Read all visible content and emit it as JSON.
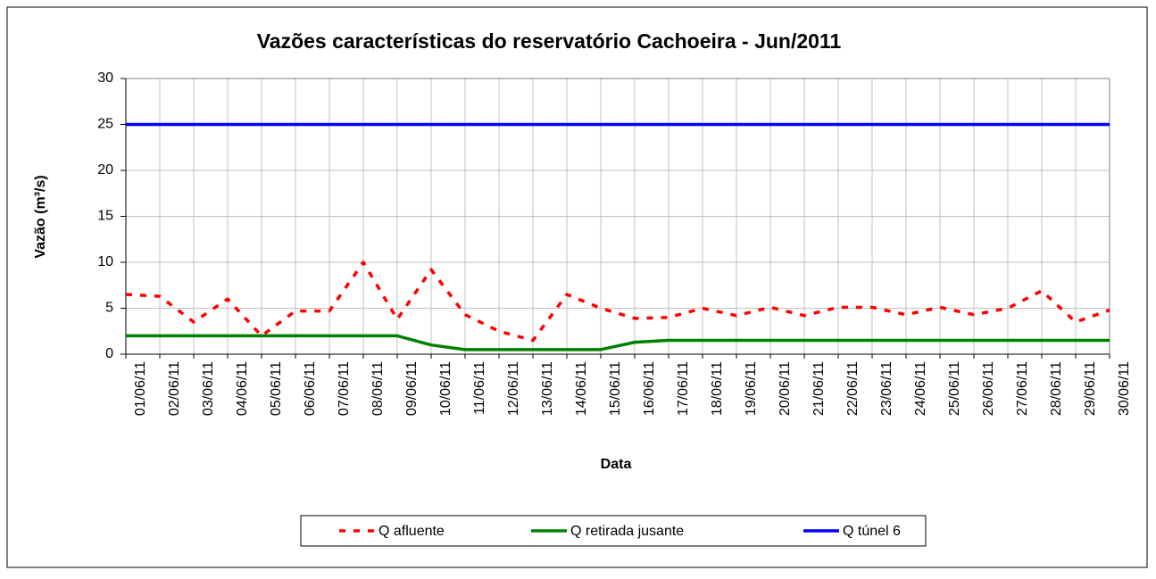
{
  "chart_data": {
    "type": "line",
    "title": "Vazões características do reservatório Cachoeira - Jun/2011",
    "x_label": "Data",
    "y_label": "Vazão (m³/s)",
    "categories": [
      "01/06/11",
      "02/06/11",
      "03/06/11",
      "04/06/11",
      "05/06/11",
      "06/06/11",
      "07/06/11",
      "08/06/11",
      "09/06/11",
      "10/06/11",
      "11/06/11",
      "12/06/11",
      "13/06/11",
      "14/06/11",
      "15/06/11",
      "16/06/11",
      "17/06/11",
      "18/06/11",
      "19/06/11",
      "20/06/11",
      "21/06/11",
      "22/06/11",
      "23/06/11",
      "24/06/11",
      "25/06/11",
      "26/06/11",
      "27/06/11",
      "28/06/11",
      "29/06/11",
      "30/06/11"
    ],
    "series": [
      {
        "name": "Q afluente",
        "color": "#ff0000",
        "dashed": true,
        "values": [
          6.5,
          6.3,
          3.5,
          6.0,
          2.0,
          4.7,
          4.7,
          10.0,
          3.8,
          9.2,
          4.3,
          2.5,
          1.5,
          6.5,
          5.0,
          3.9,
          4.0,
          5.0,
          4.2,
          5.1,
          4.2,
          5.1,
          5.1,
          4.3,
          5.1,
          4.3,
          5.0,
          6.9,
          3.5,
          4.8
        ]
      },
      {
        "name": "Q retirada jusante",
        "color": "#008000",
        "dashed": false,
        "values": [
          2,
          2,
          2,
          2,
          2,
          2,
          2,
          2,
          2,
          1.0,
          0.5,
          0.5,
          0.5,
          0.5,
          0.5,
          1.3,
          1.5,
          1.5,
          1.5,
          1.5,
          1.5,
          1.5,
          1.5,
          1.5,
          1.5,
          1.5,
          1.5,
          1.5,
          1.5,
          1.5
        ]
      },
      {
        "name": "Q túnel 6",
        "color": "#0000ff",
        "dashed": false,
        "values": [
          25,
          25,
          25,
          25,
          25,
          25,
          25,
          25,
          25,
          25,
          25,
          25,
          25,
          25,
          25,
          25,
          25,
          25,
          25,
          25,
          25,
          25,
          25,
          25,
          25,
          25,
          25,
          25,
          25,
          25
        ]
      }
    ],
    "ylim": [
      0,
      30
    ],
    "yticks": [
      0,
      5,
      10,
      15,
      20,
      25,
      30
    ],
    "grid": true
  }
}
